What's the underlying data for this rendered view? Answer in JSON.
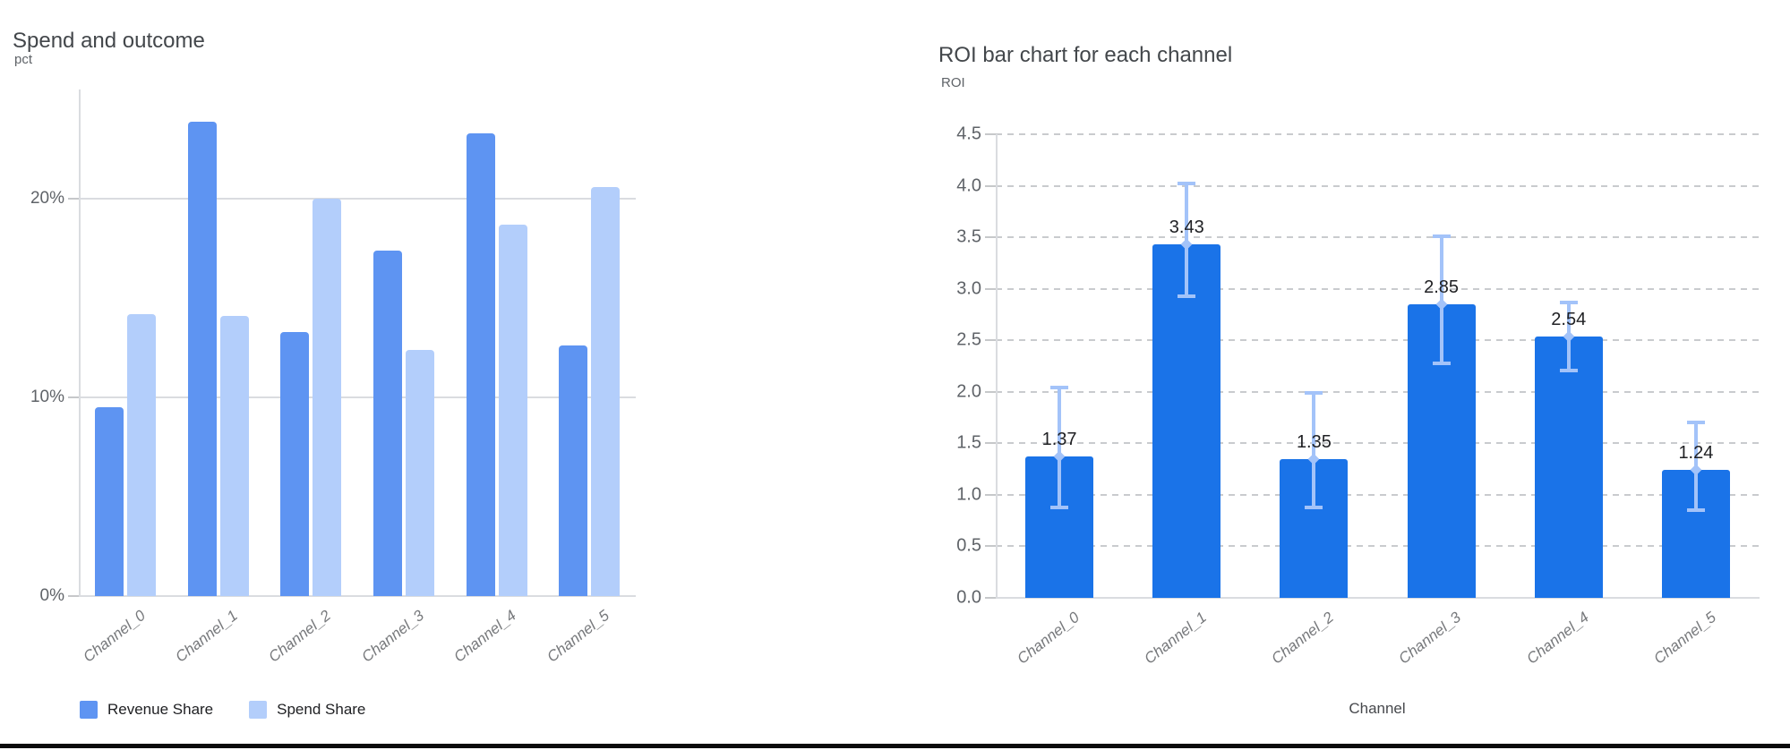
{
  "page": {
    "background": "#ffffff",
    "bottom_border_color": "#0a0a0b"
  },
  "chart_data": [
    {
      "type": "bar",
      "title": "Spend and outcome",
      "y_unit_label": "pct",
      "xlabel": "",
      "categories": [
        "Channel_0",
        "Channel_1",
        "Channel_2",
        "Channel_3",
        "Channel_4",
        "Channel_5"
      ],
      "series": [
        {
          "name": "Revenue Share",
          "color": "#5e94f2",
          "values": [
            9.5,
            23.9,
            13.3,
            17.4,
            23.3,
            12.6
          ]
        },
        {
          "name": "Spend Share",
          "color": "#b3cefb",
          "values": [
            14.2,
            14.1,
            20.0,
            12.4,
            18.7,
            20.6
          ]
        }
      ],
      "y_ticks": [
        {
          "value": 0,
          "label": "0%"
        },
        {
          "value": 10,
          "label": "10%"
        },
        {
          "value": 20,
          "label": "20%"
        }
      ],
      "ylim": [
        0,
        25.5
      ],
      "grid": "solid",
      "legend_position": "bottom-left"
    },
    {
      "type": "bar",
      "title": "ROI bar chart for each channel",
      "y_unit_label": "ROI",
      "xlabel": "Channel",
      "categories": [
        "Channel_0",
        "Channel_1",
        "Channel_2",
        "Channel_3",
        "Channel_4",
        "Channel_5"
      ],
      "values": [
        1.37,
        3.43,
        1.35,
        2.85,
        2.54,
        1.24
      ],
      "value_labels": [
        "1.37",
        "3.43",
        "1.35",
        "2.85",
        "2.54",
        "1.24"
      ],
      "error_low": [
        0.88,
        2.93,
        0.88,
        2.28,
        2.21,
        0.85
      ],
      "error_high": [
        2.04,
        4.02,
        1.99,
        3.51,
        2.87,
        1.7
      ],
      "bar_color": "#1a73e8",
      "error_color": "#a3c3f9",
      "y_ticks": [
        {
          "value": 0.0,
          "label": "0.0"
        },
        {
          "value": 0.5,
          "label": "0.5"
        },
        {
          "value": 1.0,
          "label": "1.0"
        },
        {
          "value": 1.5,
          "label": "1.5"
        },
        {
          "value": 2.0,
          "label": "2.0"
        },
        {
          "value": 2.5,
          "label": "2.5"
        },
        {
          "value": 3.0,
          "label": "3.0"
        },
        {
          "value": 3.5,
          "label": "3.5"
        },
        {
          "value": 4.0,
          "label": "4.0"
        },
        {
          "value": 4.5,
          "label": "4.5"
        }
      ],
      "ylim": [
        0,
        4.5
      ],
      "grid": "dashed",
      "legend_position": "none"
    }
  ]
}
